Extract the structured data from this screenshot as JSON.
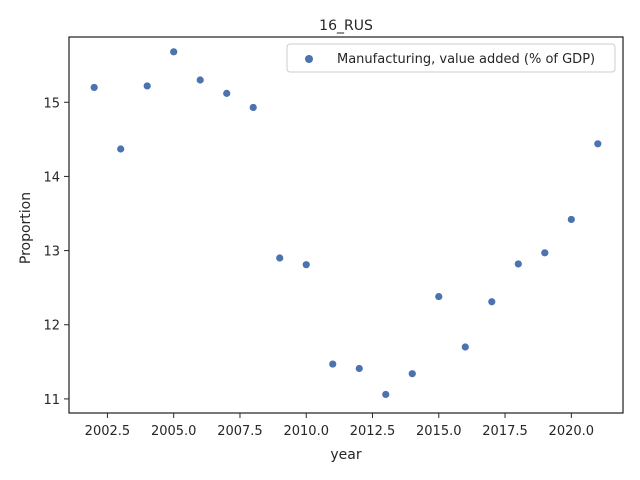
{
  "chart_data": {
    "type": "scatter",
    "title": "16_RUS",
    "xlabel": "year",
    "ylabel": "Proportion",
    "xlim": [
      2001.05,
      2021.95
    ],
    "ylim": [
      10.81,
      15.88
    ],
    "xticks": [
      2002.5,
      2005.0,
      2007.5,
      2010.0,
      2012.5,
      2015.0,
      2017.5,
      2020.0
    ],
    "xtick_labels": [
      "2002.5",
      "2005.0",
      "2007.5",
      "2010.0",
      "2012.5",
      "2015.0",
      "2017.5",
      "2020.0"
    ],
    "yticks": [
      11,
      12,
      13,
      14,
      15
    ],
    "ytick_labels": [
      "11",
      "12",
      "13",
      "14",
      "15"
    ],
    "grid": false,
    "legend_position": "top-right",
    "color": "#4c72b0",
    "series": [
      {
        "name": "Manufacturing, value added (% of GDP)",
        "x": [
          2002,
          2003,
          2004,
          2005,
          2006,
          2007,
          2008,
          2009,
          2010,
          2011,
          2012,
          2013,
          2014,
          2015,
          2016,
          2017,
          2018,
          2019,
          2020,
          2021
        ],
        "y": [
          15.2,
          14.37,
          15.22,
          15.68,
          15.3,
          15.12,
          14.93,
          12.9,
          12.81,
          11.47,
          11.41,
          11.06,
          11.34,
          12.38,
          11.7,
          12.31,
          12.82,
          12.97,
          13.42,
          14.44
        ]
      }
    ]
  }
}
